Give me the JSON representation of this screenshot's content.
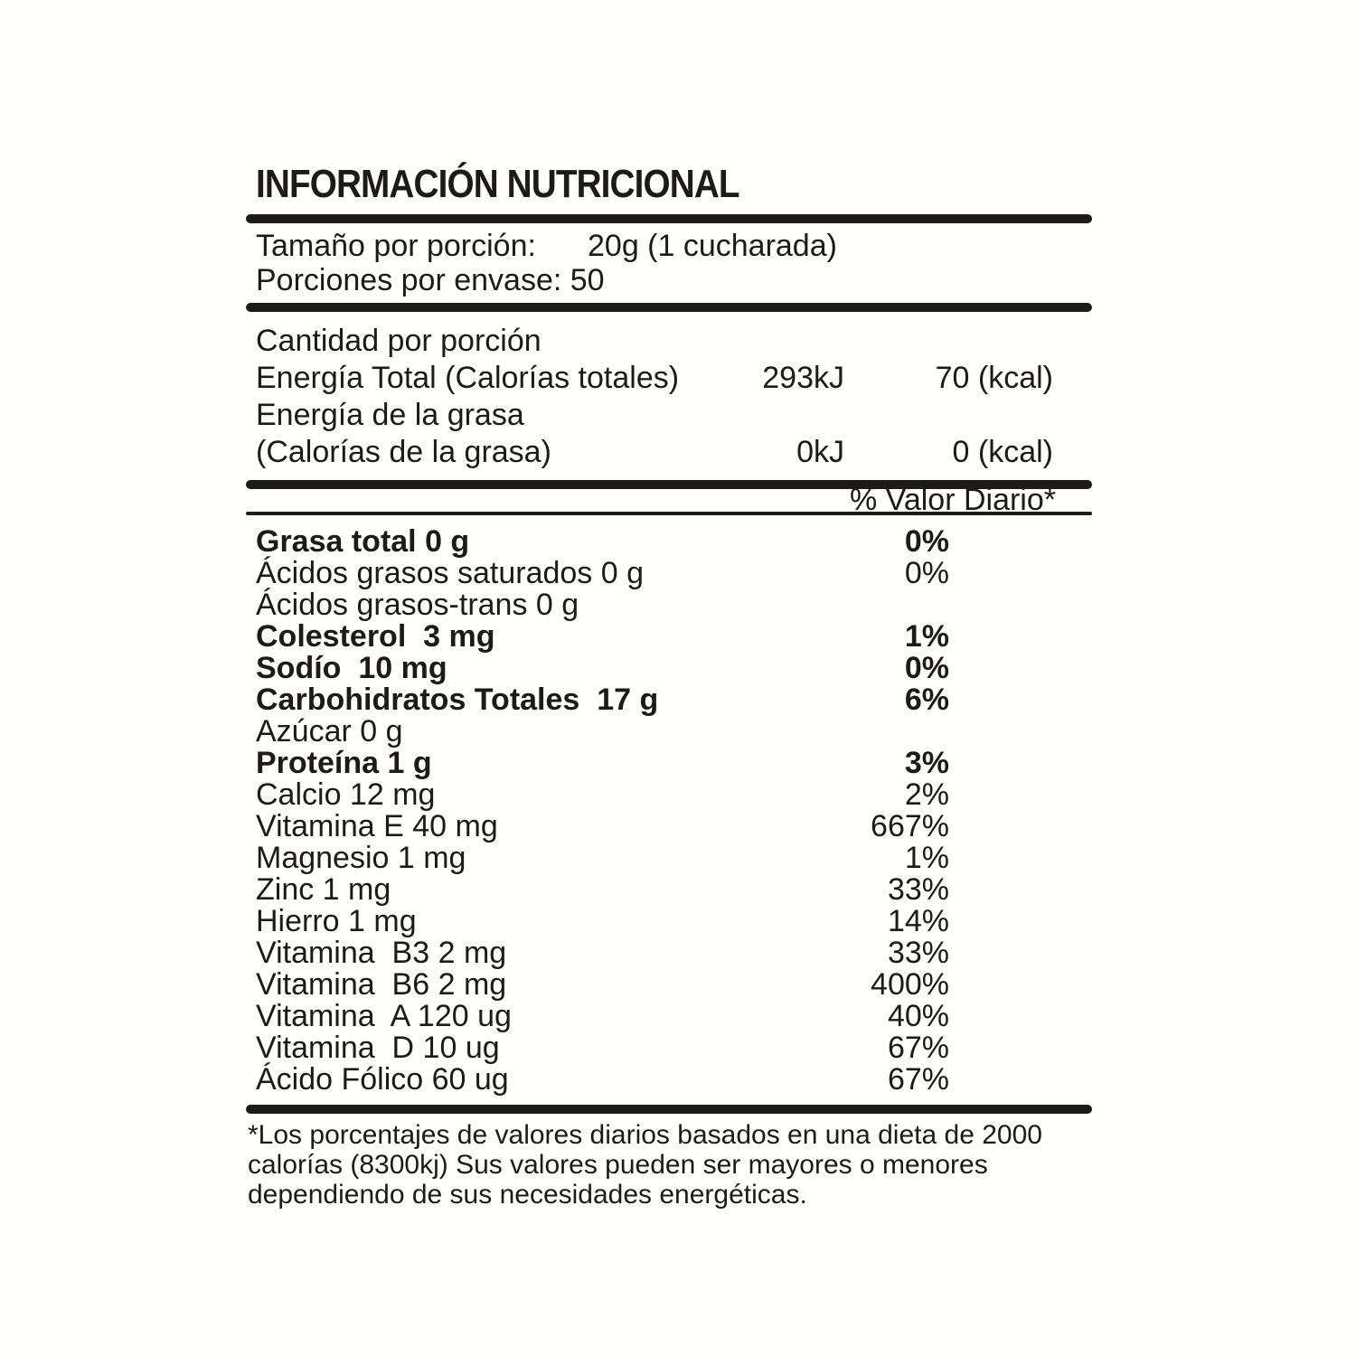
{
  "title": "INFORMACIÓN NUTRICIONAL",
  "serving": {
    "size_label": "Tamaño por porción:",
    "size_value": "20g (1 cucharada)",
    "per_container_label": "Porciones por envase: 50"
  },
  "energy": {
    "heading": "Cantidad por porción",
    "total_label": "Energía Total (Calorías totales)",
    "total_kj": "293kJ",
    "total_kcal": "70 (kcal)",
    "fat_label_line1": "Energía de la grasa",
    "fat_label_line2": "(Calorías de la grasa)",
    "fat_kj": "0kJ",
    "fat_kcal": "0 (kcal)"
  },
  "table": {
    "dv_header": "% Valor Diario*",
    "rows": [
      {
        "label": "Grasa total 0 g",
        "dv": "0%"
      },
      {
        "label": "Ácidos grasos saturados 0 g",
        "dv": "0%"
      },
      {
        "label": "Ácidos grasos-trans 0 g",
        "dv": ""
      },
      {
        "label": "Colesterol  3 mg",
        "dv": "1%"
      },
      {
        "label": "Sodío  10 mg",
        "dv": "0%"
      },
      {
        "label": "Carbohidratos Totales  17 g",
        "dv": "6%"
      },
      {
        "label": "Azúcar 0 g",
        "dv": ""
      },
      {
        "label": "Proteína 1 g",
        "dv": "3%"
      },
      {
        "label": "Calcio 12 mg",
        "dv": "2%"
      },
      {
        "label": "Vitamina E 40 mg",
        "dv": "667%"
      },
      {
        "label": "Magnesio 1 mg",
        "dv": "1%"
      },
      {
        "label": "Zinc 1 mg",
        "dv": "33%"
      },
      {
        "label": "Hierro 1 mg",
        "dv": "14%"
      },
      {
        "label": "Vitamina  B3 2 mg",
        "dv": "33%"
      },
      {
        "label": "Vitamina  B6 2 mg",
        "dv": "400%"
      },
      {
        "label": "Vitamina  A 120 ug",
        "dv": "40%"
      },
      {
        "label": "Vitamina  D 10 ug",
        "dv": "67%"
      },
      {
        "label": "Ácido Fólico 60 ug",
        "dv": "67%"
      }
    ]
  },
  "footnote": {
    "line1": "*Los porcentajes de valores diarios basados en una dieta de 2000",
    "line2": "calorías (8300kj) Sus valores pueden ser mayores o menores",
    "line3": "dependiendo de sus necesidades energéticas."
  },
  "colors": {
    "ink": "#1d1b19",
    "background": "#fefefd"
  }
}
